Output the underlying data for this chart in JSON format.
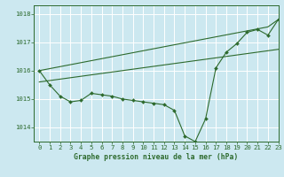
{
  "title": "Graphe pression niveau de la mer (hPa)",
  "bg_color": "#cce8f0",
  "grid_color": "#ffffff",
  "line_color": "#2d6a2d",
  "xlim": [
    -0.5,
    23
  ],
  "ylim": [
    1013.5,
    1018.3
  ],
  "yticks": [
    1014,
    1015,
    1016,
    1017,
    1018
  ],
  "ytick_labels": [
    "1014",
    "1015",
    "1016",
    "1017",
    "1018"
  ],
  "xticks": [
    0,
    1,
    2,
    3,
    4,
    5,
    6,
    7,
    8,
    9,
    10,
    11,
    12,
    13,
    14,
    15,
    16,
    17,
    18,
    19,
    20,
    21,
    22,
    23
  ],
  "series_main": [
    1016.0,
    1015.5,
    1015.1,
    1014.9,
    1014.95,
    1015.2,
    1015.15,
    1015.1,
    1015.0,
    1014.95,
    1014.9,
    1014.85,
    1014.8,
    1014.6,
    1013.7,
    1013.5,
    1014.3,
    1016.1,
    1016.65,
    1016.95,
    1017.35,
    1017.45,
    1017.25,
    1017.8
  ],
  "series_trend1": [
    1016.0,
    1016.07,
    1016.14,
    1016.21,
    1016.28,
    1016.35,
    1016.42,
    1016.49,
    1016.56,
    1016.63,
    1016.7,
    1016.77,
    1016.84,
    1016.91,
    1016.98,
    1017.05,
    1017.12,
    1017.19,
    1017.26,
    1017.33,
    1017.4,
    1017.47,
    1017.54,
    1017.8
  ],
  "series_trend2": [
    1015.6,
    1015.65,
    1015.7,
    1015.75,
    1015.8,
    1015.85,
    1015.9,
    1015.95,
    1016.0,
    1016.05,
    1016.1,
    1016.15,
    1016.2,
    1016.25,
    1016.3,
    1016.35,
    1016.4,
    1016.45,
    1016.5,
    1016.55,
    1016.6,
    1016.65,
    1016.7,
    1016.75
  ],
  "marker_size": 2.0,
  "linewidth": 0.8,
  "tick_fontsize": 5.2,
  "xlabel_fontsize": 5.8
}
